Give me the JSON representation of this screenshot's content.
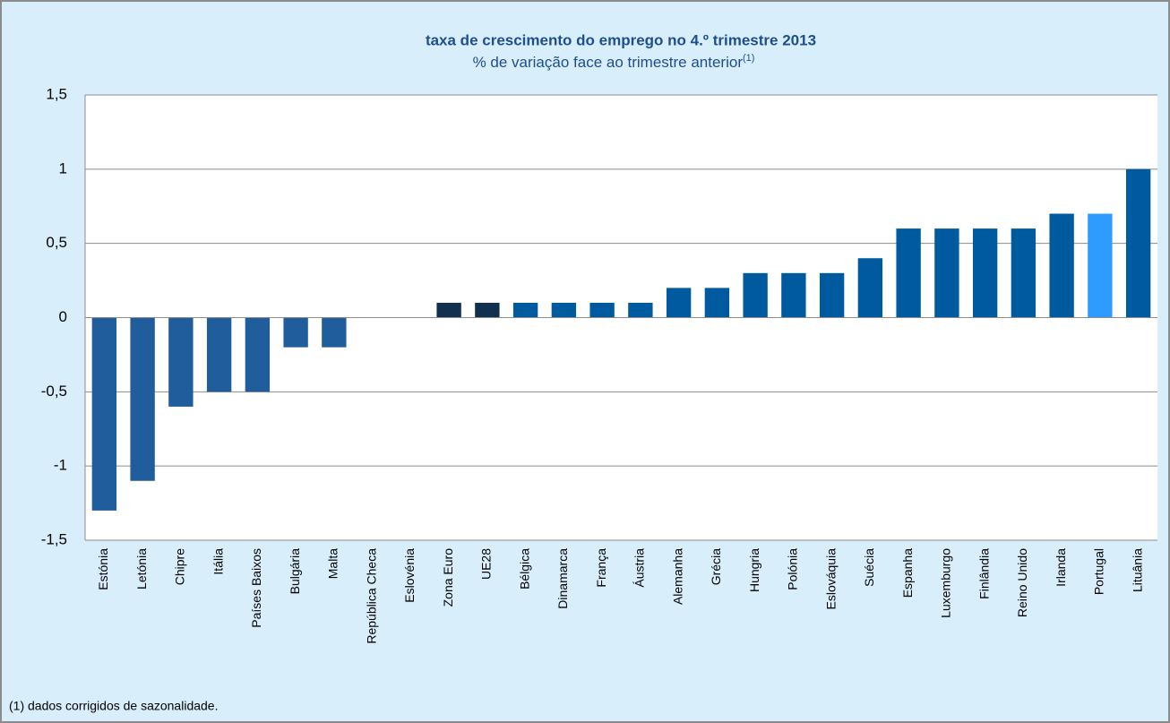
{
  "chart_data": {
    "type": "bar",
    "title": "taxa de crescimento do emprego no 4.º trimestre 2013",
    "subtitle": "% de variação face ao trimestre anterior",
    "subtitle_note": "(1)",
    "footnote": "(1) dados corrigidos de sazonalidade.",
    "categories": [
      "Estónia",
      "Letónia",
      "Chipre",
      "Itália",
      "Países Baixos",
      "Bulgária",
      "Malta",
      "República Checa",
      "Eslovénia",
      "Zona Euro",
      "UE28",
      "Bélgica",
      "Dinamarca",
      "França",
      "Áustria",
      "Alemanha",
      "Grécia",
      "Hungria",
      "Polónia",
      "Eslováquia",
      "Suécia",
      "Espanha",
      "Luxemburgo",
      "Finlândia",
      "Reino Unido",
      "Irlanda",
      "Portugal",
      "Lituânia"
    ],
    "values": [
      -1.3,
      -1.1,
      -0.6,
      -0.5,
      -0.5,
      -0.2,
      -0.2,
      0,
      0,
      0.1,
      0.1,
      0.1,
      0.1,
      0.1,
      0.1,
      0.2,
      0.2,
      0.3,
      0.3,
      0.3,
      0.4,
      0.6,
      0.6,
      0.6,
      0.6,
      0.7,
      0.7,
      1.0
    ],
    "colors": [
      "#1f5d9c",
      "#1f5d9c",
      "#1f5d9c",
      "#1f5d9c",
      "#1f5d9c",
      "#1f5d9c",
      "#1f5d9c",
      "#1f5d9c",
      "#1f5d9c",
      "#10304f",
      "#10304f",
      "#005aa0",
      "#005aa0",
      "#005aa0",
      "#005aa0",
      "#005aa0",
      "#005aa0",
      "#005aa0",
      "#005aa0",
      "#005aa0",
      "#005aa0",
      "#005aa0",
      "#005aa0",
      "#005aa0",
      "#005aa0",
      "#005aa0",
      "#2e9cff",
      "#005aa0"
    ],
    "ylim": [
      -1.5,
      1.5
    ],
    "yticks": [
      {
        "value": -1.5,
        "label": "-1,5"
      },
      -1,
      {
        "value": -0.5,
        "label": "-0,5"
      },
      0,
      {
        "value": 0.5,
        "label": "0,5"
      },
      1,
      {
        "value": 1.5,
        "label": "1,5"
      }
    ],
    "grid": true
  }
}
